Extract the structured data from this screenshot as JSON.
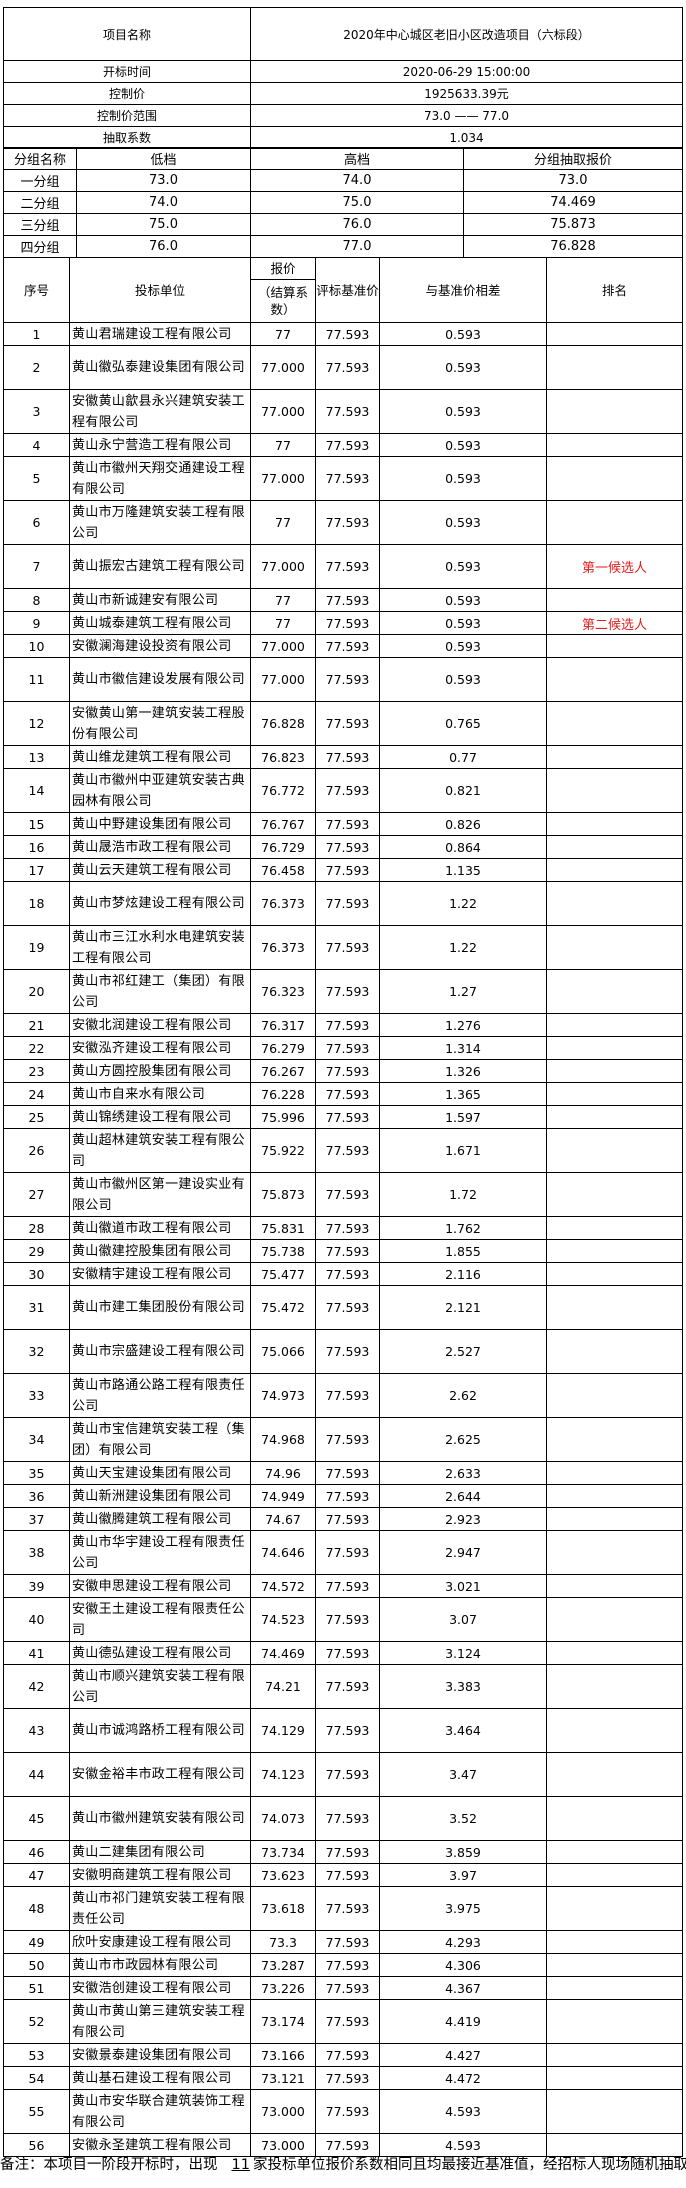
{
  "info": {
    "project_label": "项目名称",
    "project_value": "2020年中心城区老旧小区改造项目（六标段）",
    "open_time_label": "开标时间",
    "open_time_value": "2020-06-29 15:00:00",
    "control_price_label": "控制价",
    "control_price_value": "1925633.39元",
    "range_label": "控制价范围",
    "range_value": "73.0 —— 77.0",
    "coef_label": "抽取系数",
    "coef_value": "1.034"
  },
  "groups": {
    "headers": [
      "分组名称",
      "低档",
      "高档",
      "分组抽取报价"
    ],
    "rows": [
      [
        "一分组",
        "73.0",
        "74.0",
        "73.0"
      ],
      [
        "二分组",
        "74.0",
        "75.0",
        "74.469"
      ],
      [
        "三分组",
        "75.0",
        "76.0",
        "75.873"
      ],
      [
        "四分组",
        "76.0",
        "77.0",
        "76.828"
      ]
    ]
  },
  "main_headers": {
    "seq": "序号",
    "company": "投标单位",
    "price_top": "报价",
    "price_bottom": "（结算系数）",
    "base": "评标基准价",
    "diff": "与基准价相差",
    "rank": "排名"
  },
  "bids": [
    [
      "1",
      "黄山君瑞建设工程有限公司",
      "77",
      "77.593",
      "0.593",
      ""
    ],
    [
      "2",
      "黄山徽弘泰建设集团有限公司",
      "77.000",
      "77.593",
      "0.593",
      ""
    ],
    [
      "3",
      "安徽黄山歙县永兴建筑安装工程有限公司",
      "77.000",
      "77.593",
      "0.593",
      ""
    ],
    [
      "4",
      "黄山永宁营造工程有限公司",
      "77",
      "77.593",
      "0.593",
      ""
    ],
    [
      "5",
      "黄山市徽州天翔交通建设工程有限公司",
      "77.000",
      "77.593",
      "0.593",
      ""
    ],
    [
      "6",
      "黄山市万隆建筑安装工程有限公司",
      "77",
      "77.593",
      "0.593",
      ""
    ],
    [
      "7",
      "黄山振宏古建筑工程有限公司",
      "77.000",
      "77.593",
      "0.593",
      "第一候选人"
    ],
    [
      "8",
      "黄山市新诚建安有限公司",
      "77",
      "77.593",
      "0.593",
      ""
    ],
    [
      "9",
      "黄山城泰建筑工程有限公司",
      "77",
      "77.593",
      "0.593",
      "第二候选人"
    ],
    [
      "10",
      "安徽澜海建设投资有限公司",
      "77.000",
      "77.593",
      "0.593",
      ""
    ],
    [
      "11",
      "黄山市徽信建设发展有限公司",
      "77.000",
      "77.593",
      "0.593",
      ""
    ],
    [
      "12",
      "安徽黄山第一建筑安装工程股份有限公司",
      "76.828",
      "77.593",
      "0.765",
      ""
    ],
    [
      "13",
      "黄山维龙建筑工程有限公司",
      "76.823",
      "77.593",
      "0.77",
      ""
    ],
    [
      "14",
      "黄山市徽州中亚建筑安装古典园林有限公司",
      "76.772",
      "77.593",
      "0.821",
      ""
    ],
    [
      "15",
      "黄山中野建设集团有限公司",
      "76.767",
      "77.593",
      "0.826",
      ""
    ],
    [
      "16",
      "黄山晟浩市政工程有限公司",
      "76.729",
      "77.593",
      "0.864",
      ""
    ],
    [
      "17",
      "黄山云天建筑工程有限公司",
      "76.458",
      "77.593",
      "1.135",
      ""
    ],
    [
      "18",
      "黄山市梦炫建设工程有限公司",
      "76.373",
      "77.593",
      "1.22",
      ""
    ],
    [
      "19",
      "黄山市三江水利水电建筑安装工程有限公司",
      "76.373",
      "77.593",
      "1.22",
      ""
    ],
    [
      "20",
      "黄山市祁红建工（集团）有限公司",
      "76.323",
      "77.593",
      "1.27",
      ""
    ],
    [
      "21",
      "安徽北润建设工程有限公司",
      "76.317",
      "77.593",
      "1.276",
      ""
    ],
    [
      "22",
      "安徽泓齐建设工程有限公司",
      "76.279",
      "77.593",
      "1.314",
      ""
    ],
    [
      "23",
      "黄山方圆控股集团有限公司",
      "76.267",
      "77.593",
      "1.326",
      ""
    ],
    [
      "24",
      "黄山市自来水有限公司",
      "76.228",
      "77.593",
      "1.365",
      ""
    ],
    [
      "25",
      "黄山锦绣建设工程有限公司",
      "75.996",
      "77.593",
      "1.597",
      ""
    ],
    [
      "26",
      "黄山超林建筑安装工程有限公司",
      "75.922",
      "77.593",
      "1.671",
      ""
    ],
    [
      "27",
      "黄山市徽州区第一建设实业有限公司",
      "75.873",
      "77.593",
      "1.72",
      ""
    ],
    [
      "28",
      "黄山徽道市政工程有限公司",
      "75.831",
      "77.593",
      "1.762",
      ""
    ],
    [
      "29",
      "黄山徽建控股集团有限公司",
      "75.738",
      "77.593",
      "1.855",
      ""
    ],
    [
      "30",
      "安徽精宇建设工程有限公司",
      "75.477",
      "77.593",
      "2.116",
      ""
    ],
    [
      "31",
      "黄山市建工集团股份有限公司",
      "75.472",
      "77.593",
      "2.121",
      ""
    ],
    [
      "32",
      "黄山市宗盛建设工程有限公司",
      "75.066",
      "77.593",
      "2.527",
      ""
    ],
    [
      "33",
      "黄山市路通公路工程有限责任公司",
      "74.973",
      "77.593",
      "2.62",
      ""
    ],
    [
      "34",
      "黄山市宝信建筑安装工程（集团）有限公司",
      "74.968",
      "77.593",
      "2.625",
      ""
    ],
    [
      "35",
      "黄山天宝建设集团有限公司",
      "74.96",
      "77.593",
      "2.633",
      ""
    ],
    [
      "36",
      "黄山新洲建设集团有限公司",
      "74.949",
      "77.593",
      "2.644",
      ""
    ],
    [
      "37",
      "黄山徽腾建筑工程有限公司",
      "74.67",
      "77.593",
      "2.923",
      ""
    ],
    [
      "38",
      "黄山市华宇建设工程有限责任公司",
      "74.646",
      "77.593",
      "2.947",
      ""
    ],
    [
      "39",
      "安徽申思建设工程有限公司",
      "74.572",
      "77.593",
      "3.021",
      ""
    ],
    [
      "40",
      "安徽王土建设工程有限责任公司",
      "74.523",
      "77.593",
      "3.07",
      ""
    ],
    [
      "41",
      "黄山德弘建设工程有限公司",
      "74.469",
      "77.593",
      "3.124",
      ""
    ],
    [
      "42",
      "黄山市顺兴建筑安装工程有限公司",
      "74.21",
      "77.593",
      "3.383",
      ""
    ],
    [
      "43",
      "黄山市诚鸿路桥工程有限公司",
      "74.129",
      "77.593",
      "3.464",
      ""
    ],
    [
      "44",
      "安徽金裕丰市政工程有限公司",
      "74.123",
      "77.593",
      "3.47",
      ""
    ],
    [
      "45",
      "黄山市徽州建筑安装有限公司",
      "74.073",
      "77.593",
      "3.52",
      ""
    ],
    [
      "46",
      "黄山二建集团有限公司",
      "73.734",
      "77.593",
      "3.859",
      ""
    ],
    [
      "47",
      "安徽明商建筑工程有限公司",
      "73.623",
      "77.593",
      "3.97",
      ""
    ],
    [
      "48",
      "黄山市祁门建筑安装工程有限责任公司",
      "73.618",
      "77.593",
      "3.975",
      ""
    ],
    [
      "49",
      "欣叶安康建设工程有限公司",
      "73.3",
      "77.593",
      "4.293",
      ""
    ],
    [
      "50",
      "黄山市市政园林有限公司",
      "73.287",
      "77.593",
      "4.306",
      ""
    ],
    [
      "51",
      "安徽浩创建设工程有限公司",
      "73.226",
      "77.593",
      "4.367",
      ""
    ],
    [
      "52",
      "黄山市黄山第三建筑安装工程有限公司",
      "73.174",
      "77.593",
      "4.419",
      ""
    ],
    [
      "53",
      "安徽景泰建设集团有限公司",
      "73.166",
      "77.593",
      "4.427",
      ""
    ],
    [
      "54",
      "黄山基石建设工程有限公司",
      "73.121",
      "77.593",
      "4.472",
      ""
    ],
    [
      "55",
      "黄山市安华联合建筑装饰工程有限公司",
      "73.000",
      "77.593",
      "4.593",
      ""
    ],
    [
      "56",
      "安徽永圣建筑工程有限公司",
      "73.000",
      "77.593",
      "4.593",
      ""
    ]
  ],
  "rank_color": "#e02020",
  "footnote": {
    "prefix": "备注：本项目一阶段开标时，出现",
    "count": "11",
    "suffix": "家投标单位报价系数相同且均最接近基准值，经招标人现场随机抽取确定"
  }
}
